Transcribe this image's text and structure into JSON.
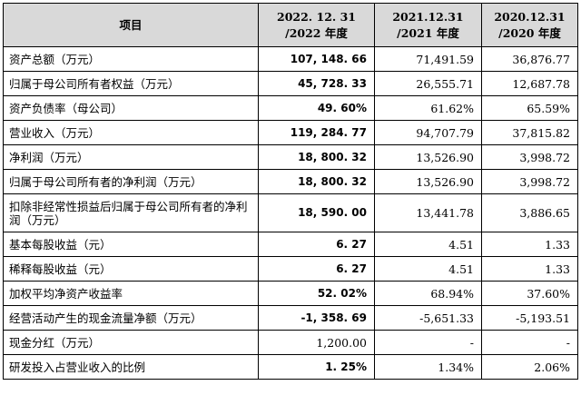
{
  "table": {
    "headers": [
      {
        "line1": "项目",
        "line2": ""
      },
      {
        "line1": "2022. 12. 31",
        "line2": "/2022 年度"
      },
      {
        "line1": "2021.12.31",
        "line2": "/2021 年度"
      },
      {
        "line1": "2020.12.31",
        "line2": "/2020 年度"
      }
    ],
    "rows": [
      {
        "label": "资产总额（万元）",
        "v2022": "107, 148. 66",
        "v2021": "71,491.59",
        "v2020": "36,876.77"
      },
      {
        "label": "归属于母公司所有者权益（万元）",
        "v2022": "45, 728. 33",
        "v2021": "26,555.71",
        "v2020": "12,687.78"
      },
      {
        "label": "资产负债率（母公司）",
        "v2022": "49. 60%",
        "v2021": "61.62%",
        "v2020": "65.59%"
      },
      {
        "label": "营业收入（万元）",
        "v2022": "119, 284. 77",
        "v2021": "94,707.79",
        "v2020": "37,815.82"
      },
      {
        "label": "净利润（万元）",
        "v2022": "18, 800. 32",
        "v2021": "13,526.90",
        "v2020": "3,998.72"
      },
      {
        "label": "归属于母公司所有者的净利润（万元）",
        "v2022": "18, 800. 32",
        "v2021": "13,526.90",
        "v2020": "3,998.72"
      },
      {
        "label": "扣除非经常性损益后归属于母公司所有者的净利润（万元）",
        "v2022": "18, 590. 00",
        "v2021": "13,441.78",
        "v2020": "3,886.65"
      },
      {
        "label": "基本每股收益（元）",
        "v2022": "6. 27",
        "v2021": "4.51",
        "v2020": "1.33"
      },
      {
        "label": "稀释每股收益（元）",
        "v2022": "6. 27",
        "v2021": "4.51",
        "v2020": "1.33"
      },
      {
        "label": "加权平均净资产收益率",
        "v2022": "52. 02%",
        "v2021": "68.94%",
        "v2020": "37.60%"
      },
      {
        "label": "经营活动产生的现金流量净额（万元）",
        "v2022": "-1, 358. 69",
        "v2021": "-5,651.33",
        "v2020": "-5,193.51"
      },
      {
        "label": "现金分红（万元）",
        "v2022": "1,200.00",
        "v2021": "-",
        "v2020": "-"
      },
      {
        "label": "研发投入占营业收入的比例",
        "v2022": "1. 25%",
        "v2021": "1.34%",
        "v2020": "2.06%"
      }
    ]
  }
}
